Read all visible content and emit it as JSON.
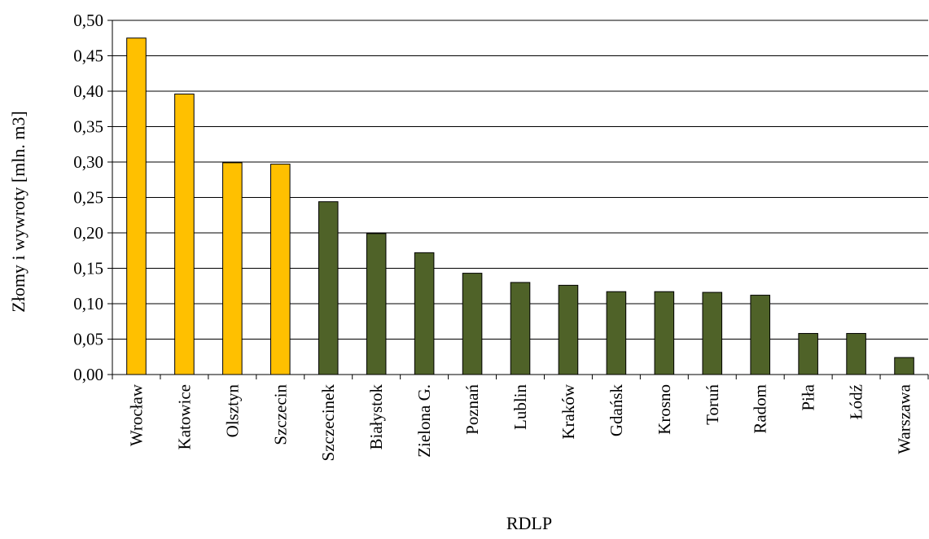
{
  "chart_data": {
    "type": "bar",
    "title": "",
    "xlabel": "RDLP",
    "ylabel": "Złomy i wywroty [mln. m3]",
    "ylim": [
      0,
      0.5
    ],
    "ytick_step": 0.05,
    "ytick_labels": [
      "0,00",
      "0,05",
      "0,10",
      "0,15",
      "0,20",
      "0,25",
      "0,30",
      "0,35",
      "0,40",
      "0,45",
      "0,50"
    ],
    "grid": true,
    "legend": "none",
    "categories": [
      "Wrocław",
      "Katowice",
      "Olsztyn",
      "Szczecin",
      "Szczecinek",
      "Białystok",
      "Zielona G.",
      "Poznań",
      "Lublin",
      "Kraków",
      "Gdańsk",
      "Krosno",
      "Toruń",
      "Radom",
      "Piła",
      "Łódź",
      "Warszawa"
    ],
    "values": [
      0.475,
      0.396,
      0.299,
      0.297,
      0.244,
      0.199,
      0.172,
      0.143,
      0.13,
      0.126,
      0.117,
      0.117,
      0.116,
      0.112,
      0.058,
      0.058,
      0.024
    ],
    "colors": {
      "highlight": "#FFC000",
      "default": "#4F6228",
      "outline": "#000000",
      "grid": "#000000"
    },
    "highlight_count": 4
  }
}
